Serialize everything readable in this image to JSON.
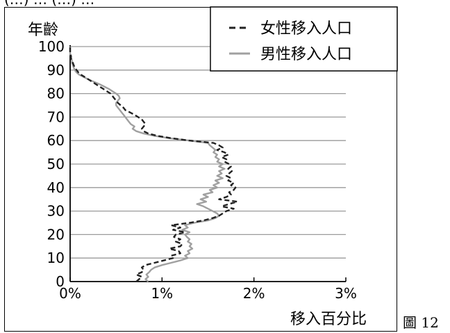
{
  "top_caption": "(…) … (…) …",
  "figure_caption": "圖 12",
  "chart_data": {
    "type": "line",
    "ylabel": "年齡",
    "xlabel": "移入百分比",
    "x_tick_labels": [
      "0%",
      "1%",
      "2%",
      "3%"
    ],
    "y_tick_labels": [
      "0",
      "10",
      "20",
      "30",
      "40",
      "50",
      "60",
      "70",
      "80",
      "90",
      "100"
    ],
    "xlim": [
      0,
      3
    ],
    "ylim": [
      0,
      100
    ],
    "grid": "horizontal",
    "legend_position": "top-right",
    "series": [
      {
        "name": "女性移入人口",
        "style": "dashed",
        "color": "#222222",
        "points": [
          [
            0.72,
            0
          ],
          [
            0.75,
            1
          ],
          [
            0.78,
            2
          ],
          [
            0.72,
            3
          ],
          [
            0.78,
            4
          ],
          [
            0.8,
            5
          ],
          [
            0.78,
            6
          ],
          [
            0.82,
            7
          ],
          [
            0.92,
            8
          ],
          [
            1.02,
            9
          ],
          [
            1.12,
            10
          ],
          [
            1.1,
            11
          ],
          [
            1.2,
            12
          ],
          [
            1.18,
            13
          ],
          [
            1.08,
            14
          ],
          [
            1.2,
            15
          ],
          [
            1.22,
            16
          ],
          [
            1.15,
            17
          ],
          [
            1.2,
            18
          ],
          [
            1.13,
            19
          ],
          [
            1.15,
            20
          ],
          [
            1.25,
            21
          ],
          [
            1.12,
            22
          ],
          [
            1.2,
            23
          ],
          [
            1.1,
            24
          ],
          [
            1.3,
            25
          ],
          [
            1.45,
            26
          ],
          [
            1.55,
            27
          ],
          [
            1.62,
            28
          ],
          [
            1.66,
            29
          ],
          [
            1.7,
            30
          ],
          [
            1.78,
            31
          ],
          [
            1.65,
            32
          ],
          [
            1.73,
            33
          ],
          [
            1.82,
            34
          ],
          [
            1.62,
            35
          ],
          [
            1.7,
            36
          ],
          [
            1.75,
            37
          ],
          [
            1.73,
            38
          ],
          [
            1.78,
            39
          ],
          [
            1.8,
            40
          ],
          [
            1.75,
            41
          ],
          [
            1.78,
            42
          ],
          [
            1.72,
            43
          ],
          [
            1.75,
            44
          ],
          [
            1.7,
            45
          ],
          [
            1.73,
            46
          ],
          [
            1.76,
            47
          ],
          [
            1.72,
            48
          ],
          [
            1.75,
            49
          ],
          [
            1.73,
            50
          ],
          [
            1.68,
            51
          ],
          [
            1.7,
            52
          ],
          [
            1.65,
            53
          ],
          [
            1.72,
            54
          ],
          [
            1.68,
            55
          ],
          [
            1.6,
            56
          ],
          [
            1.66,
            57
          ],
          [
            1.62,
            58
          ],
          [
            1.56,
            59
          ],
          [
            1.3,
            60
          ],
          [
            1.1,
            61
          ],
          [
            0.95,
            62
          ],
          [
            0.85,
            63
          ],
          [
            0.8,
            64
          ],
          [
            0.78,
            65
          ],
          [
            0.8,
            66
          ],
          [
            0.82,
            67
          ],
          [
            0.8,
            68
          ],
          [
            0.78,
            69
          ],
          [
            0.74,
            70
          ],
          [
            0.7,
            71
          ],
          [
            0.65,
            72
          ],
          [
            0.6,
            73
          ],
          [
            0.58,
            74
          ],
          [
            0.55,
            75
          ],
          [
            0.52,
            76
          ],
          [
            0.5,
            77
          ],
          [
            0.48,
            78
          ],
          [
            0.46,
            79
          ],
          [
            0.44,
            80
          ],
          [
            0.4,
            81
          ],
          [
            0.36,
            82
          ],
          [
            0.32,
            83
          ],
          [
            0.28,
            84
          ],
          [
            0.24,
            85
          ],
          [
            0.2,
            86
          ],
          [
            0.16,
            87
          ],
          [
            0.12,
            88
          ],
          [
            0.09,
            89
          ],
          [
            0.07,
            90
          ],
          [
            0.05,
            91
          ],
          [
            0.04,
            92
          ],
          [
            0.03,
            93
          ],
          [
            0.02,
            94
          ],
          [
            0.01,
            95
          ],
          [
            0.01,
            96
          ],
          [
            0.0,
            97
          ],
          [
            0.0,
            98
          ],
          [
            0.0,
            99
          ],
          [
            0.0,
            100
          ]
        ]
      },
      {
        "name": "男性移入人口",
        "style": "solid",
        "color": "#a0a0a0",
        "points": [
          [
            0.85,
            0
          ],
          [
            0.82,
            1
          ],
          [
            0.85,
            2
          ],
          [
            0.83,
            3
          ],
          [
            0.86,
            4
          ],
          [
            0.88,
            5
          ],
          [
            0.92,
            6
          ],
          [
            1.0,
            7
          ],
          [
            1.1,
            8
          ],
          [
            1.2,
            9
          ],
          [
            1.28,
            10
          ],
          [
            1.25,
            11
          ],
          [
            1.3,
            12
          ],
          [
            1.28,
            13
          ],
          [
            1.33,
            14
          ],
          [
            1.3,
            15
          ],
          [
            1.32,
            16
          ],
          [
            1.28,
            17
          ],
          [
            1.3,
            18
          ],
          [
            1.27,
            19
          ],
          [
            1.25,
            20
          ],
          [
            1.3,
            21
          ],
          [
            1.22,
            22
          ],
          [
            1.28,
            23
          ],
          [
            1.25,
            24
          ],
          [
            1.35,
            25
          ],
          [
            1.5,
            26
          ],
          [
            1.58,
            27
          ],
          [
            1.62,
            28
          ],
          [
            1.6,
            29
          ],
          [
            1.55,
            30
          ],
          [
            1.5,
            31
          ],
          [
            1.45,
            32
          ],
          [
            1.38,
            33
          ],
          [
            1.48,
            34
          ],
          [
            1.42,
            35
          ],
          [
            1.5,
            36
          ],
          [
            1.45,
            37
          ],
          [
            1.55,
            38
          ],
          [
            1.52,
            39
          ],
          [
            1.6,
            40
          ],
          [
            1.56,
            41
          ],
          [
            1.62,
            42
          ],
          [
            1.58,
            43
          ],
          [
            1.66,
            44
          ],
          [
            1.6,
            45
          ],
          [
            1.65,
            46
          ],
          [
            1.62,
            47
          ],
          [
            1.68,
            48
          ],
          [
            1.62,
            49
          ],
          [
            1.66,
            50
          ],
          [
            1.6,
            51
          ],
          [
            1.62,
            52
          ],
          [
            1.58,
            53
          ],
          [
            1.6,
            54
          ],
          [
            1.56,
            55
          ],
          [
            1.58,
            56
          ],
          [
            1.55,
            57
          ],
          [
            1.52,
            58
          ],
          [
            1.5,
            59
          ],
          [
            1.3,
            60
          ],
          [
            1.08,
            61
          ],
          [
            0.92,
            62
          ],
          [
            0.8,
            63
          ],
          [
            0.72,
            64
          ],
          [
            0.68,
            65
          ],
          [
            0.7,
            66
          ],
          [
            0.66,
            67
          ],
          [
            0.64,
            68
          ],
          [
            0.62,
            69
          ],
          [
            0.6,
            70
          ],
          [
            0.58,
            71
          ],
          [
            0.56,
            72
          ],
          [
            0.54,
            73
          ],
          [
            0.52,
            74
          ],
          [
            0.5,
            75
          ],
          [
            0.5,
            76
          ],
          [
            0.52,
            77
          ],
          [
            0.54,
            78
          ],
          [
            0.53,
            79
          ],
          [
            0.5,
            80
          ],
          [
            0.46,
            81
          ],
          [
            0.42,
            82
          ],
          [
            0.37,
            83
          ],
          [
            0.32,
            84
          ],
          [
            0.26,
            85
          ],
          [
            0.2,
            86
          ],
          [
            0.15,
            87
          ],
          [
            0.1,
            88
          ],
          [
            0.07,
            89
          ],
          [
            0.05,
            90
          ],
          [
            0.04,
            91
          ],
          [
            0.03,
            92
          ],
          [
            0.02,
            93
          ],
          [
            0.02,
            94
          ],
          [
            0.01,
            95
          ],
          [
            0.01,
            96
          ],
          [
            0.0,
            97
          ],
          [
            0.0,
            98
          ],
          [
            0.0,
            99
          ],
          [
            0.0,
            100
          ]
        ]
      }
    ]
  }
}
